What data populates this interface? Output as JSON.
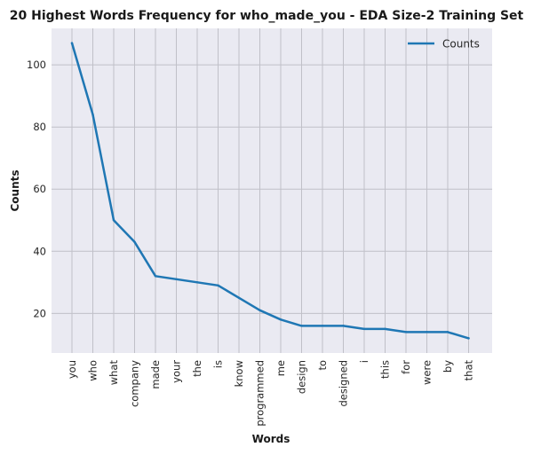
{
  "chart_data": {
    "type": "line",
    "title": "20 Highest Words Frequency for who_made_you - EDA Size-2 Training Set",
    "xlabel": "Words",
    "ylabel": "Counts",
    "categories": [
      "you",
      "who",
      "what",
      "company",
      "made",
      "your",
      "the",
      "is",
      "know",
      "programmed",
      "me",
      "design",
      "to",
      "designed",
      "i",
      "this",
      "for",
      "were",
      "by",
      "that"
    ],
    "series": [
      {
        "name": "Counts",
        "values": [
          107,
          84,
          50,
          43,
          32,
          31,
          30,
          29,
          25,
          21,
          18,
          16,
          16,
          16,
          15,
          15,
          14,
          14,
          14,
          12
        ],
        "color": "#1f77b4"
      }
    ],
    "ylim": [
      7.25,
      111.75
    ],
    "yticks": [
      20,
      40,
      60,
      80,
      100
    ],
    "grid": true,
    "legend_position": "top-right",
    "background": "#eaeaf2",
    "grid_color": "#c0c0c8"
  }
}
